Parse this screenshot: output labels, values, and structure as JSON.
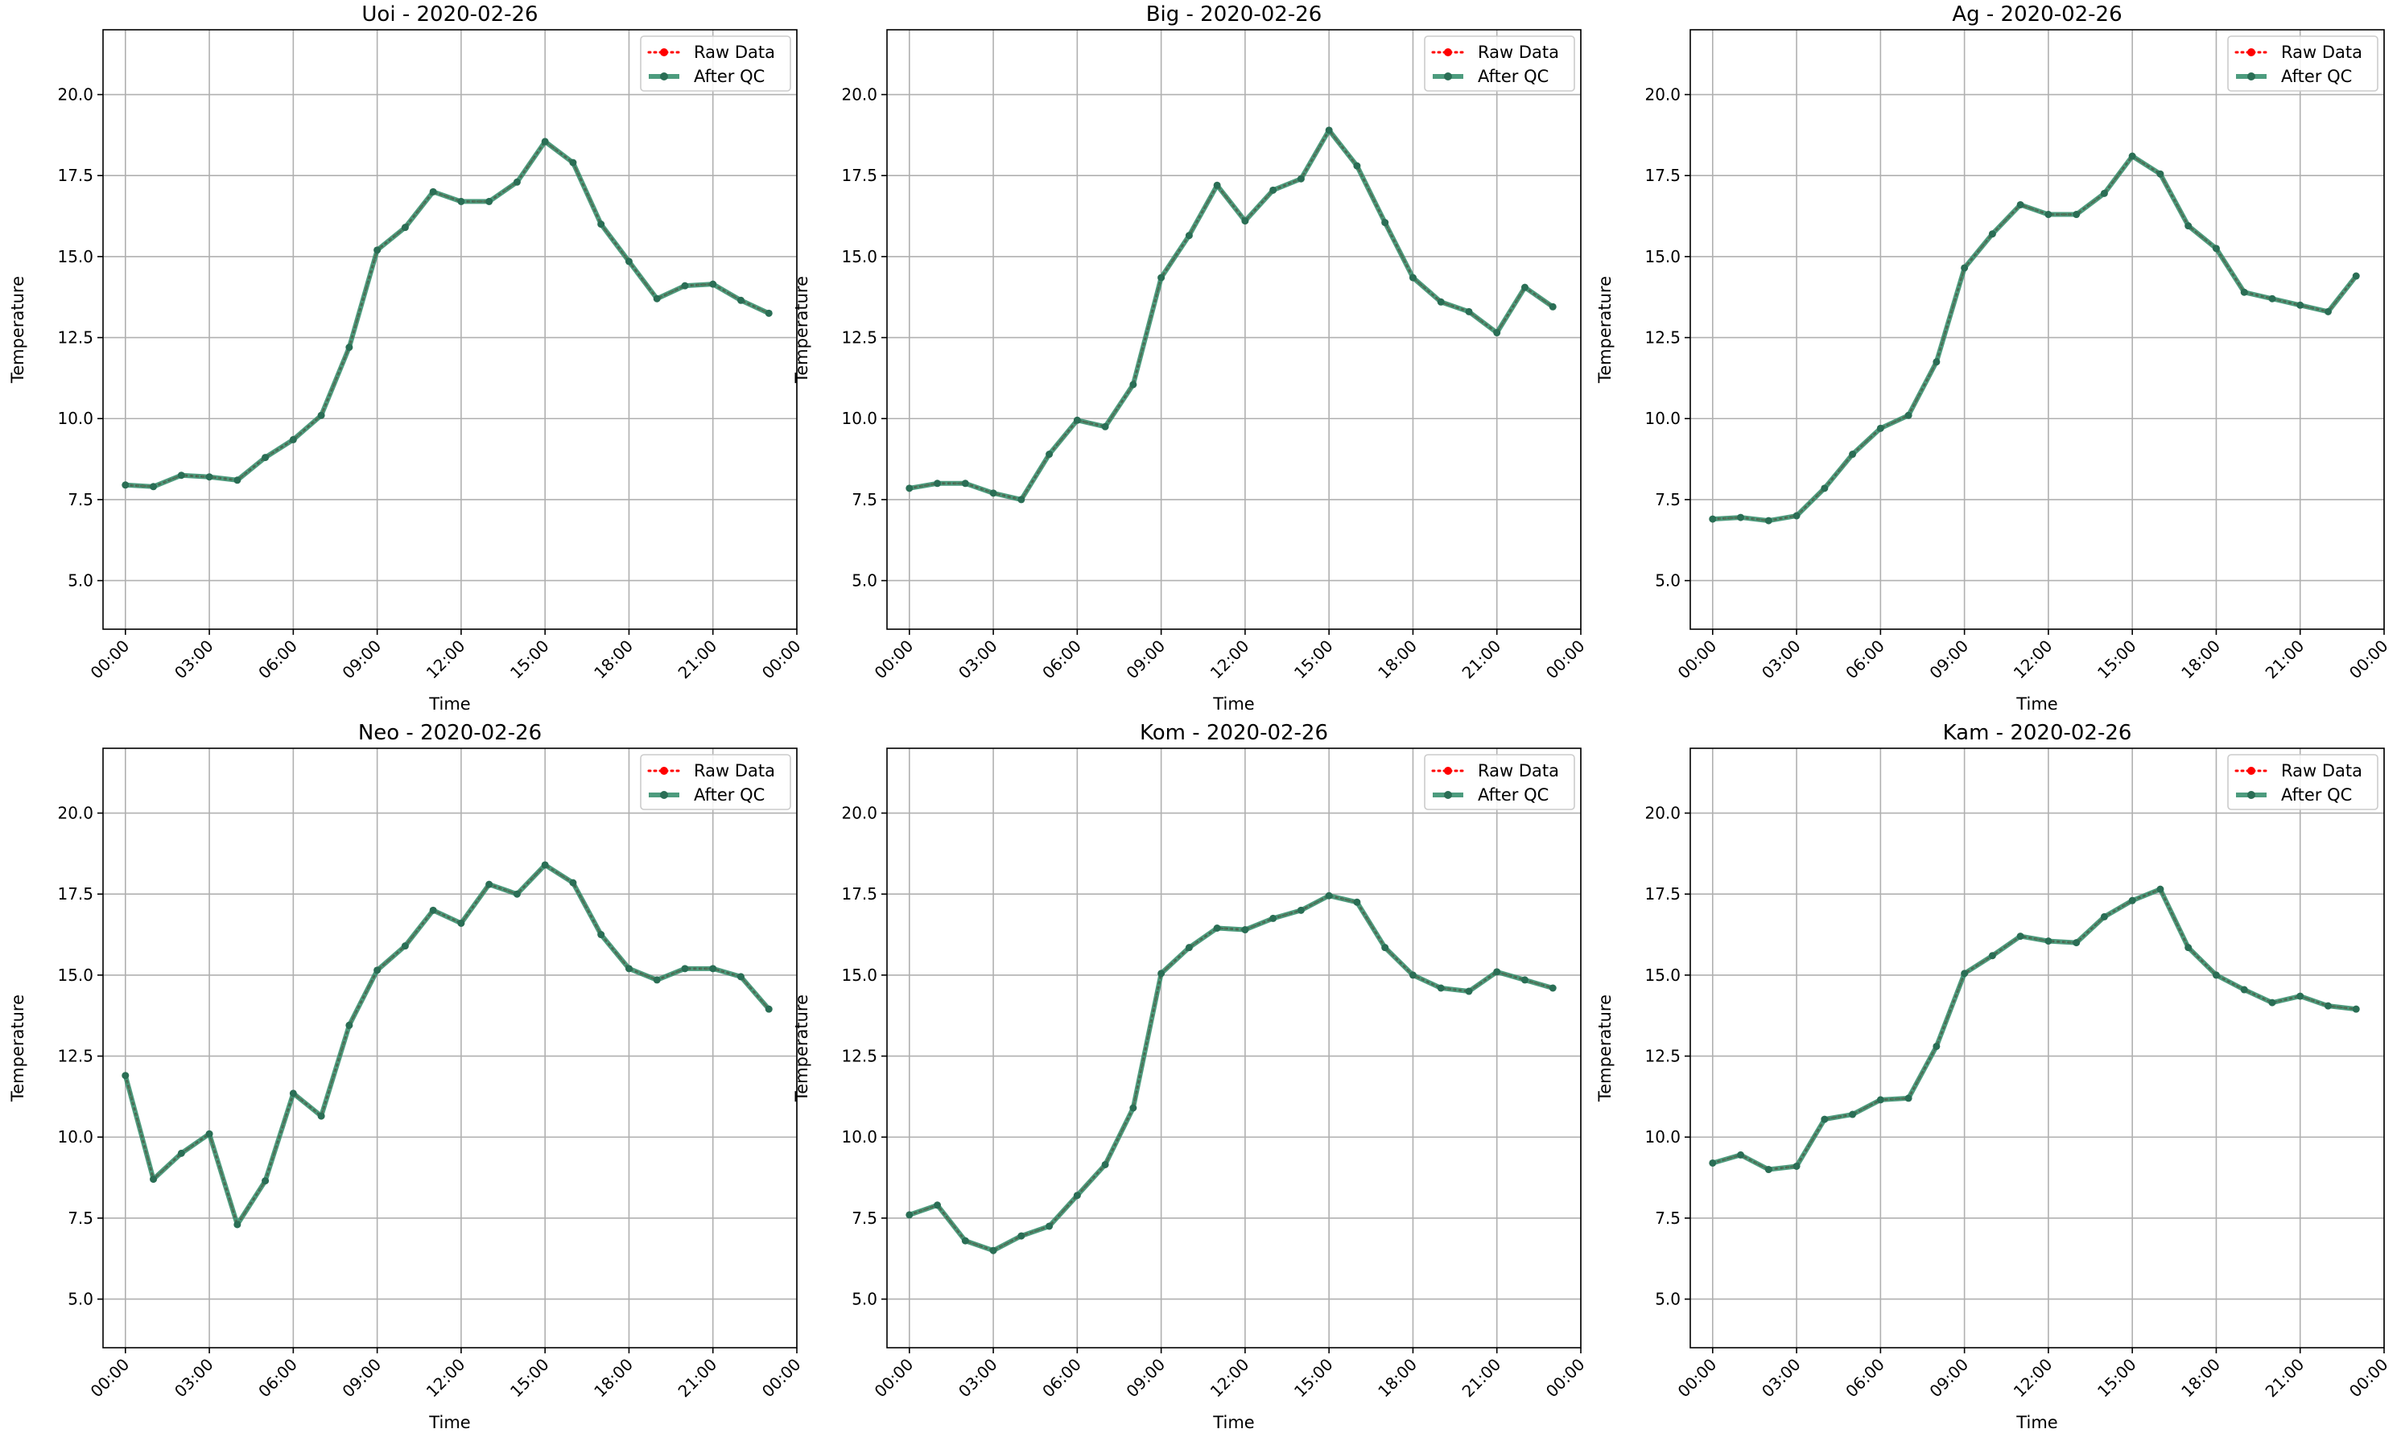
{
  "colors": {
    "raw": "#ff0000",
    "qc": "#2e8b67",
    "grid": "#b0b0b0",
    "axes": "#000000"
  },
  "chart_data": [
    {
      "type": "line",
      "title": "Uoi - 2020-02-26",
      "xlabel": "Time",
      "ylabel": "Temperature",
      "ylim": [
        3.5,
        22.0
      ],
      "xlim": [
        -0.8,
        24.0
      ],
      "x_unit": "hours",
      "xticks": [
        0,
        3,
        6,
        9,
        12,
        15,
        18,
        21,
        24
      ],
      "xtick_labels": [
        "00:00",
        "03:00",
        "06:00",
        "09:00",
        "12:00",
        "15:00",
        "18:00",
        "21:00",
        "00:00"
      ],
      "yticks": [
        5.0,
        7.5,
        10.0,
        12.5,
        15.0,
        17.5,
        20.0
      ],
      "ytick_labels": [
        "5.0",
        "7.5",
        "10.0",
        "12.5",
        "15.0",
        "17.5",
        "20.0"
      ],
      "grid": true,
      "legend": "top-right",
      "x": [
        0,
        1,
        2,
        3,
        4,
        5,
        6,
        7,
        8,
        9,
        10,
        11,
        12,
        13,
        14,
        15,
        16,
        17,
        18,
        19,
        20,
        21,
        22,
        23
      ],
      "series": [
        {
          "name": "Raw Data",
          "values": [
            7.95,
            7.9,
            8.25,
            8.2,
            8.1,
            8.8,
            9.35,
            10.1,
            12.2,
            15.2,
            15.9,
            17.0,
            16.7,
            16.7,
            17.3,
            18.55,
            17.9,
            16.0,
            14.85,
            13.7,
            14.1,
            14.15,
            13.65,
            13.25
          ]
        },
        {
          "name": "After QC",
          "values": [
            7.95,
            7.9,
            8.25,
            8.2,
            8.1,
            8.8,
            9.35,
            10.1,
            12.2,
            15.2,
            15.9,
            17.0,
            16.7,
            16.7,
            17.3,
            18.55,
            17.9,
            16.0,
            14.85,
            13.7,
            14.1,
            14.15,
            13.65,
            13.25
          ]
        }
      ]
    },
    {
      "type": "line",
      "title": "Big - 2020-02-26",
      "xlabel": "Time",
      "ylabel": "Temperature",
      "ylim": [
        3.5,
        22.0
      ],
      "xlim": [
        -0.8,
        24.0
      ],
      "x_unit": "hours",
      "xticks": [
        0,
        3,
        6,
        9,
        12,
        15,
        18,
        21,
        24
      ],
      "xtick_labels": [
        "00:00",
        "03:00",
        "06:00",
        "09:00",
        "12:00",
        "15:00",
        "18:00",
        "21:00",
        "00:00"
      ],
      "yticks": [
        5.0,
        7.5,
        10.0,
        12.5,
        15.0,
        17.5,
        20.0
      ],
      "ytick_labels": [
        "5.0",
        "7.5",
        "10.0",
        "12.5",
        "15.0",
        "17.5",
        "20.0"
      ],
      "grid": true,
      "legend": "top-right",
      "x": [
        0,
        1,
        2,
        3,
        4,
        5,
        6,
        7,
        8,
        9,
        10,
        11,
        12,
        13,
        14,
        15,
        16,
        17,
        18,
        19,
        20,
        21,
        22,
        23
      ],
      "series": [
        {
          "name": "Raw Data",
          "values": [
            7.85,
            8.0,
            8.0,
            7.7,
            7.5,
            8.9,
            9.95,
            9.75,
            11.05,
            14.35,
            15.65,
            17.2,
            16.1,
            17.05,
            17.4,
            18.9,
            17.8,
            16.05,
            14.35,
            13.6,
            13.3,
            12.65,
            14.05,
            13.45
          ]
        },
        {
          "name": "After QC",
          "values": [
            7.85,
            8.0,
            8.0,
            7.7,
            7.5,
            8.9,
            9.95,
            9.75,
            11.05,
            14.35,
            15.65,
            17.2,
            16.1,
            17.05,
            17.4,
            18.9,
            17.8,
            16.05,
            14.35,
            13.6,
            13.3,
            12.65,
            14.05,
            13.45
          ]
        }
      ]
    },
    {
      "type": "line",
      "title": "Ag - 2020-02-26",
      "xlabel": "Time",
      "ylabel": "Temperature",
      "ylim": [
        3.5,
        22.0
      ],
      "xlim": [
        -0.8,
        24.0
      ],
      "x_unit": "hours",
      "xticks": [
        0,
        3,
        6,
        9,
        12,
        15,
        18,
        21,
        24
      ],
      "xtick_labels": [
        "00:00",
        "03:00",
        "06:00",
        "09:00",
        "12:00",
        "15:00",
        "18:00",
        "21:00",
        "00:00"
      ],
      "yticks": [
        5.0,
        7.5,
        10.0,
        12.5,
        15.0,
        17.5,
        20.0
      ],
      "ytick_labels": [
        "5.0",
        "7.5",
        "10.0",
        "12.5",
        "15.0",
        "17.5",
        "20.0"
      ],
      "grid": true,
      "legend": "top-right",
      "x": [
        0,
        1,
        2,
        3,
        4,
        5,
        6,
        7,
        8,
        9,
        10,
        11,
        12,
        13,
        14,
        15,
        16,
        17,
        18,
        19,
        20,
        21,
        22,
        23
      ],
      "series": [
        {
          "name": "Raw Data",
          "values": [
            6.9,
            6.95,
            6.85,
            7.0,
            7.85,
            8.9,
            9.7,
            10.1,
            11.75,
            14.65,
            15.7,
            16.6,
            16.3,
            16.3,
            16.95,
            18.1,
            17.55,
            15.95,
            15.25,
            13.9,
            13.7,
            13.5,
            13.3,
            14.4
          ]
        },
        {
          "name": "After QC",
          "values": [
            6.9,
            6.95,
            6.85,
            7.0,
            7.85,
            8.9,
            9.7,
            10.1,
            11.75,
            14.65,
            15.7,
            16.6,
            16.3,
            16.3,
            16.95,
            18.1,
            17.55,
            15.95,
            15.25,
            13.9,
            13.7,
            13.5,
            13.3,
            14.4
          ]
        }
      ]
    },
    {
      "type": "line",
      "title": "Neo - 2020-02-26",
      "xlabel": "Time",
      "ylabel": "Temperature",
      "ylim": [
        3.5,
        22.0
      ],
      "xlim": [
        -0.8,
        24.0
      ],
      "x_unit": "hours",
      "xticks": [
        0,
        3,
        6,
        9,
        12,
        15,
        18,
        21,
        24
      ],
      "xtick_labels": [
        "00:00",
        "03:00",
        "06:00",
        "09:00",
        "12:00",
        "15:00",
        "18:00",
        "21:00",
        "00:00"
      ],
      "yticks": [
        5.0,
        7.5,
        10.0,
        12.5,
        15.0,
        17.5,
        20.0
      ],
      "ytick_labels": [
        "5.0",
        "7.5",
        "10.0",
        "12.5",
        "15.0",
        "17.5",
        "20.0"
      ],
      "grid": true,
      "legend": "top-right",
      "x": [
        0,
        1,
        2,
        3,
        4,
        5,
        6,
        7,
        8,
        9,
        10,
        11,
        12,
        13,
        14,
        15,
        16,
        17,
        18,
        19,
        20,
        21,
        22,
        23
      ],
      "series": [
        {
          "name": "Raw Data",
          "values": [
            11.9,
            8.7,
            9.5,
            10.1,
            7.3,
            8.65,
            11.35,
            10.65,
            13.45,
            15.15,
            15.9,
            17.0,
            16.6,
            17.8,
            17.5,
            18.4,
            17.85,
            16.25,
            15.2,
            14.85,
            15.2,
            15.2,
            14.95,
            13.95
          ]
        },
        {
          "name": "After QC",
          "values": [
            11.9,
            8.7,
            9.5,
            10.1,
            7.3,
            8.65,
            11.35,
            10.65,
            13.45,
            15.15,
            15.9,
            17.0,
            16.6,
            17.8,
            17.5,
            18.4,
            17.85,
            16.25,
            15.2,
            14.85,
            15.2,
            15.2,
            14.95,
            13.95
          ]
        }
      ]
    },
    {
      "type": "line",
      "title": "Kom - 2020-02-26",
      "xlabel": "Time",
      "ylabel": "Temperature",
      "ylim": [
        3.5,
        22.0
      ],
      "xlim": [
        -0.8,
        24.0
      ],
      "x_unit": "hours",
      "xticks": [
        0,
        3,
        6,
        9,
        12,
        15,
        18,
        21,
        24
      ],
      "xtick_labels": [
        "00:00",
        "03:00",
        "06:00",
        "09:00",
        "12:00",
        "15:00",
        "18:00",
        "21:00",
        "00:00"
      ],
      "yticks": [
        5.0,
        7.5,
        10.0,
        12.5,
        15.0,
        17.5,
        20.0
      ],
      "ytick_labels": [
        "5.0",
        "7.5",
        "10.0",
        "12.5",
        "15.0",
        "17.5",
        "20.0"
      ],
      "grid": true,
      "legend": "top-right",
      "x": [
        0,
        1,
        2,
        3,
        4,
        5,
        6,
        7,
        8,
        9,
        10,
        11,
        12,
        13,
        14,
        15,
        16,
        17,
        18,
        19,
        20,
        21,
        22,
        23
      ],
      "series": [
        {
          "name": "Raw Data",
          "values": [
            7.6,
            7.9,
            6.8,
            6.5,
            6.95,
            7.25,
            8.2,
            9.15,
            10.9,
            15.05,
            15.85,
            16.45,
            16.4,
            16.75,
            17.0,
            17.45,
            17.25,
            15.85,
            15.0,
            14.6,
            14.5,
            15.1,
            14.85,
            14.6
          ]
        },
        {
          "name": "After QC",
          "values": [
            7.6,
            7.9,
            6.8,
            6.5,
            6.95,
            7.25,
            8.2,
            9.15,
            10.9,
            15.05,
            15.85,
            16.45,
            16.4,
            16.75,
            17.0,
            17.45,
            17.25,
            15.85,
            15.0,
            14.6,
            14.5,
            15.1,
            14.85,
            14.6
          ]
        }
      ]
    },
    {
      "type": "line",
      "title": "Kam - 2020-02-26",
      "xlabel": "Time",
      "ylabel": "Temperature",
      "ylim": [
        3.5,
        22.0
      ],
      "xlim": [
        -0.8,
        24.0
      ],
      "x_unit": "hours",
      "xticks": [
        0,
        3,
        6,
        9,
        12,
        15,
        18,
        21,
        24
      ],
      "xtick_labels": [
        "00:00",
        "03:00",
        "06:00",
        "09:00",
        "12:00",
        "15:00",
        "18:00",
        "21:00",
        "00:00"
      ],
      "yticks": [
        5.0,
        7.5,
        10.0,
        12.5,
        15.0,
        17.5,
        20.0
      ],
      "ytick_labels": [
        "5.0",
        "7.5",
        "10.0",
        "12.5",
        "15.0",
        "17.5",
        "20.0"
      ],
      "grid": true,
      "legend": "top-right",
      "x": [
        0,
        1,
        2,
        3,
        4,
        5,
        6,
        7,
        8,
        9,
        10,
        11,
        12,
        13,
        14,
        15,
        16,
        17,
        18,
        19,
        20,
        21,
        22,
        23
      ],
      "series": [
        {
          "name": "Raw Data",
          "values": [
            9.2,
            9.45,
            9.0,
            9.1,
            10.55,
            10.7,
            11.15,
            11.2,
            12.8,
            15.05,
            15.6,
            16.2,
            16.05,
            16.0,
            16.8,
            17.3,
            17.65,
            15.85,
            15.0,
            14.55,
            14.15,
            14.35,
            14.05,
            13.95
          ]
        },
        {
          "name": "After QC",
          "values": [
            9.2,
            9.45,
            9.0,
            9.1,
            10.55,
            10.7,
            11.15,
            11.2,
            12.8,
            15.05,
            15.6,
            16.2,
            16.05,
            16.0,
            16.8,
            17.3,
            17.65,
            15.85,
            15.0,
            14.55,
            14.15,
            14.35,
            14.05,
            13.95
          ]
        }
      ]
    }
  ]
}
